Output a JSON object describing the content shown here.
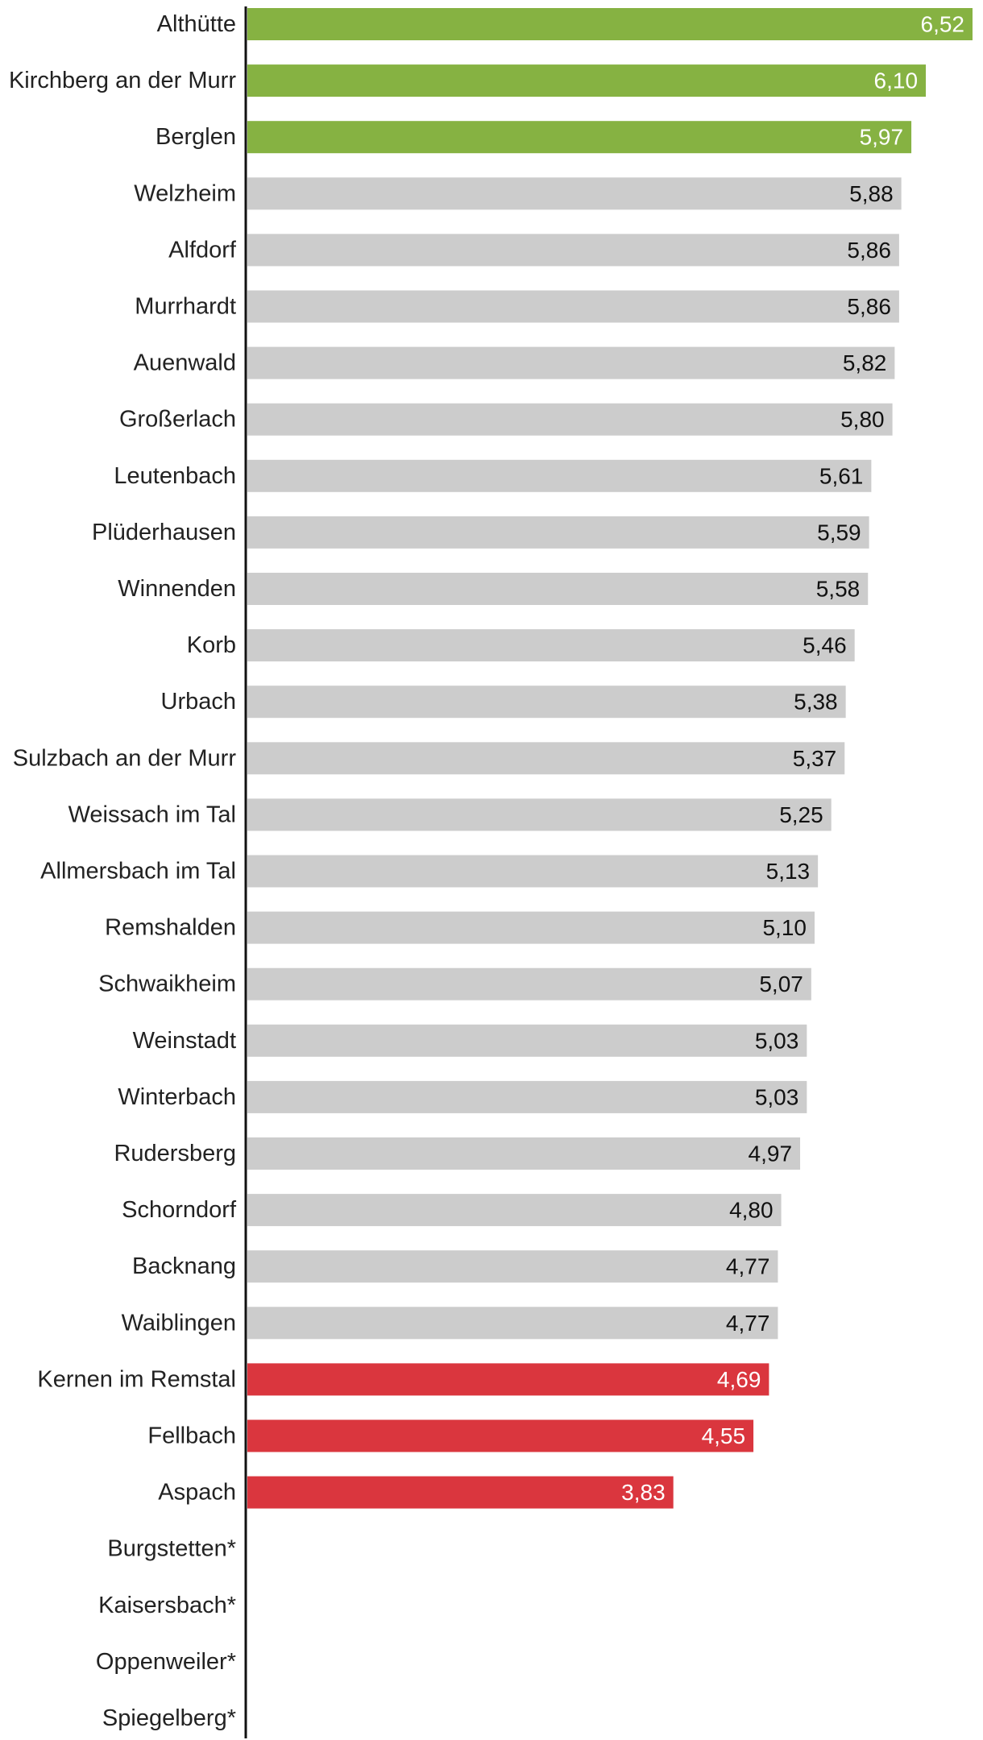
{
  "chart_data": {
    "type": "bar",
    "orientation": "horizontal",
    "title": "",
    "xlabel": "",
    "ylabel": "",
    "xlim": [
      0,
      6.52
    ],
    "grid": false,
    "legend": "none",
    "colors": {
      "top": "#86b242",
      "middle": "#cccccc",
      "bottom": "#da363e",
      "axis": "#111111",
      "label_on_dark": "#ffffff",
      "label_on_light": "#111111"
    },
    "categories": [
      "Althütte",
      "Kirchberg an der Murr",
      "Berglen",
      "Welzheim",
      "Alfdorf",
      "Murrhardt",
      "Auenwald",
      "Großerlach",
      "Leutenbach",
      "Plüderhausen",
      "Winnenden",
      "Korb",
      "Urbach",
      "Sulzbach an der Murr",
      "Weissach im Tal",
      "Allmersbach im Tal",
      "Remshalden",
      "Schwaikheim",
      "Weinstadt",
      "Winterbach",
      "Rudersberg",
      "Schorndorf",
      "Backnang",
      "Waiblingen",
      "Kernen im Remstal",
      "Fellbach",
      "Aspach",
      "Burgstetten*",
      "Kaisersbach*",
      "Oppenweiler*",
      "Spiegelberg*"
    ],
    "values": [
      6.52,
      6.1,
      5.97,
      5.88,
      5.86,
      5.86,
      5.82,
      5.8,
      5.61,
      5.59,
      5.58,
      5.46,
      5.38,
      5.37,
      5.25,
      5.13,
      5.1,
      5.07,
      5.03,
      5.03,
      4.97,
      4.8,
      4.77,
      4.77,
      4.69,
      4.55,
      3.83,
      null,
      null,
      null,
      null
    ],
    "value_labels": [
      "6,52",
      "6,10",
      "5,97",
      "5,88",
      "5,86",
      "5,86",
      "5,82",
      "5,80",
      "5,61",
      "5,59",
      "5,58",
      "5,46",
      "5,38",
      "5,37",
      "5,25",
      "5,13",
      "5,10",
      "5,07",
      "5,03",
      "5,03",
      "4,97",
      "4,80",
      "4,77",
      "4,77",
      "4,69",
      "4,55",
      "3,83",
      "",
      "",
      "",
      ""
    ],
    "groups": [
      "top",
      "top",
      "top",
      "middle",
      "middle",
      "middle",
      "middle",
      "middle",
      "middle",
      "middle",
      "middle",
      "middle",
      "middle",
      "middle",
      "middle",
      "middle",
      "middle",
      "middle",
      "middle",
      "middle",
      "middle",
      "middle",
      "middle",
      "middle",
      "bottom",
      "bottom",
      "bottom",
      "none",
      "none",
      "none",
      "none"
    ]
  }
}
